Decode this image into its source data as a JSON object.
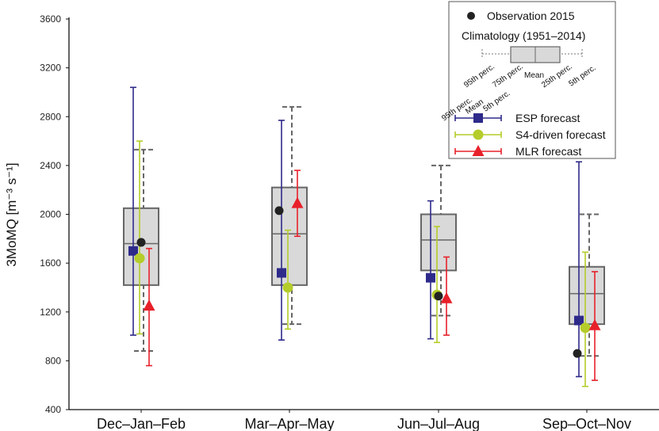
{
  "chart_data": {
    "type": "boxplot",
    "ylabel": "3MoMQ [m⁻³ s⁻¹]",
    "ylim": [
      400,
      3600
    ],
    "yticks": [
      400,
      800,
      1200,
      1600,
      2000,
      2400,
      2800,
      3200,
      3600
    ],
    "categories": [
      "Dec–Jan–Feb",
      "Mar–Apr–May",
      "Jun–Jul–Aug",
      "Sep–Oct–Nov"
    ],
    "climatology": {
      "name": "Climatology (1951–2014)",
      "p5": [
        880,
        1100,
        1170,
        840
      ],
      "p25": [
        1420,
        1420,
        1540,
        1100
      ],
      "mean": [
        1760,
        1840,
        1790,
        1350
      ],
      "p75": [
        2050,
        2220,
        2000,
        1570
      ],
      "p95": [
        2530,
        2880,
        2400,
        2000
      ]
    },
    "observation": {
      "name": "Observation 2015",
      "values": [
        1770,
        2030,
        1330,
        860
      ],
      "color": "#222222"
    },
    "series": [
      {
        "name": "ESP forecast",
        "color": "#2e2a8a",
        "marker": "square",
        "mean": [
          1700,
          1520,
          1480,
          1130
        ],
        "p5": [
          1010,
          970,
          980,
          670
        ],
        "p95": [
          3040,
          2770,
          2110,
          2430
        ]
      },
      {
        "name": "S4-driven forecast",
        "color": "#b5cc2a",
        "marker": "circle",
        "mean": [
          1640,
          1400,
          1340,
          1070
        ],
        "p5": [
          1020,
          1060,
          950,
          590
        ],
        "p95": [
          2600,
          1870,
          1900,
          1690
        ]
      },
      {
        "name": "MLR forecast",
        "color": "#e8202a",
        "marker": "triangle",
        "mean": [
          1250,
          2090,
          1310,
          1090
        ],
        "p5": [
          760,
          1820,
          1010,
          640
        ],
        "p95": [
          1720,
          2360,
          1650,
          1530
        ]
      }
    ],
    "legend": {
      "position": "top-right",
      "box_labels": [
        "95th perc.",
        "75th perc.",
        "Mean",
        "25th perc.",
        "5th perc."
      ],
      "whisker_labels": [
        "95th perc.",
        "Mean",
        "5th perc."
      ]
    }
  }
}
